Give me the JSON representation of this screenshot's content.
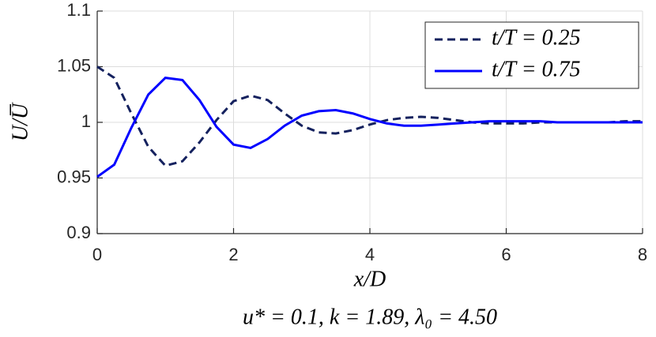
{
  "chart_data": {
    "type": "line",
    "xlabel": "x/D",
    "ylabel": "U/U̅",
    "annotation": "u* = 0.1, k = 1.89, λ₀ = 4.50",
    "x": [
      0,
      0.25,
      0.5,
      0.75,
      1,
      1.25,
      1.5,
      1.75,
      2,
      2.25,
      2.5,
      2.75,
      3,
      3.25,
      3.5,
      3.75,
      4,
      4.25,
      4.5,
      4.75,
      5,
      5.25,
      5.5,
      5.75,
      6,
      6.25,
      6.5,
      6.75,
      7,
      7.25,
      7.5,
      7.75,
      8
    ],
    "series": [
      {
        "name": "t/T = 0.25",
        "color": "#14215e",
        "dash": true,
        "values": [
          1.05,
          1.04,
          1.008,
          0.978,
          0.961,
          0.965,
          0.982,
          1.002,
          1.019,
          1.024,
          1.02,
          1.008,
          0.997,
          0.991,
          0.99,
          0.993,
          0.998,
          1.002,
          1.004,
          1.005,
          1.004,
          1.002,
          1.0,
          0.999,
          0.999,
          0.999,
          1.0,
          1.0,
          1.0,
          1.0,
          1.0,
          1.001,
          1.001
        ]
      },
      {
        "name": "t/T = 0.75",
        "color": "#0000ff",
        "dash": false,
        "values": [
          0.951,
          0.962,
          0.995,
          1.025,
          1.04,
          1.038,
          1.02,
          0.996,
          0.98,
          0.977,
          0.985,
          0.997,
          1.006,
          1.01,
          1.011,
          1.008,
          1.003,
          0.999,
          0.997,
          0.997,
          0.998,
          0.999,
          1.0,
          1.001,
          1.001,
          1.001,
          1.001,
          1.0,
          1.0,
          1.0,
          1.0,
          1.0,
          1.0
        ]
      }
    ],
    "xlim": [
      0,
      8
    ],
    "xticks": [
      0,
      2,
      4,
      6,
      8
    ],
    "ylim": [
      0.9,
      1.1
    ],
    "yticks": [
      0.9,
      0.95,
      1,
      1.05,
      1.1
    ],
    "grid": true,
    "legend": "upper right"
  }
}
